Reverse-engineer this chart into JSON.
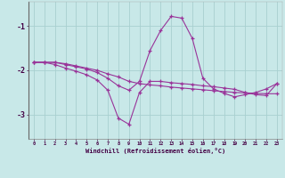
{
  "xlabel": "Windchill (Refroidissement éolien,°C)",
  "background_color": "#c8e8e8",
  "grid_color": "#a8d0d0",
  "line_color": "#993399",
  "x_hours": [
    0,
    1,
    2,
    3,
    4,
    5,
    6,
    7,
    8,
    9,
    10,
    11,
    12,
    13,
    14,
    15,
    16,
    17,
    18,
    19,
    20,
    21,
    22,
    23
  ],
  "series1": [
    -1.82,
    -1.82,
    -1.82,
    -1.85,
    -1.9,
    -1.95,
    -2.0,
    -2.08,
    -2.15,
    -2.25,
    -2.3,
    -2.33,
    -2.35,
    -2.38,
    -2.4,
    -2.42,
    -2.44,
    -2.46,
    -2.48,
    -2.5,
    -2.51,
    -2.52,
    -2.53,
    -2.53
  ],
  "series2": [
    -1.82,
    -1.82,
    -1.87,
    -1.95,
    -2.02,
    -2.1,
    -2.22,
    -2.45,
    -3.08,
    -3.22,
    -2.5,
    -2.25,
    -2.25,
    -2.28,
    -2.3,
    -2.32,
    -2.35,
    -2.37,
    -2.4,
    -2.43,
    -2.5,
    -2.55,
    -2.57,
    -2.3
  ],
  "series3": [
    -1.82,
    -1.82,
    -1.82,
    -1.87,
    -1.92,
    -1.97,
    -2.05,
    -2.18,
    -2.35,
    -2.45,
    -2.25,
    -1.55,
    -1.1,
    -0.78,
    -0.82,
    -1.28,
    -2.18,
    -2.42,
    -2.52,
    -2.6,
    -2.55,
    -2.5,
    -2.42,
    -2.3
  ],
  "ylim": [
    -3.55,
    -0.45
  ],
  "yticks": [
    -3,
    -2,
    -1
  ],
  "xlim": [
    -0.5,
    23.5
  ]
}
